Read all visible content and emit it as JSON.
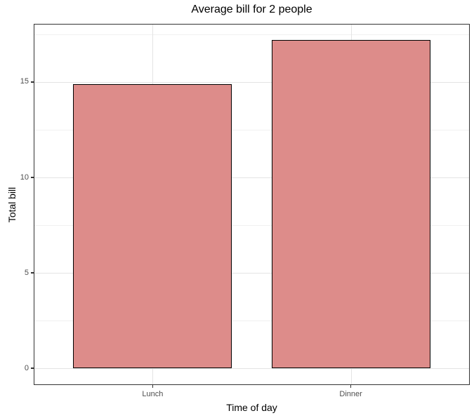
{
  "chart_data": {
    "type": "bar",
    "title": "Average bill for 2 people",
    "xlabel": "Time of day",
    "ylabel": "Total bill",
    "categories": [
      "Lunch",
      "Dinner"
    ],
    "values": [
      14.9,
      17.2
    ],
    "yticks": [
      0,
      5,
      10,
      15
    ],
    "yticks_minor": [
      2.5,
      7.5,
      12.5,
      17.5
    ],
    "ylim": [
      -0.88,
      18.05
    ],
    "xlim": [
      0.4,
      2.6
    ],
    "x_positions": [
      1,
      2
    ],
    "bar_width": 0.8,
    "grid": true,
    "legend_position": "none",
    "colors": {
      "bar_fill": "#DD8C8A",
      "bar_border": "#000000",
      "grid_major": "#E4E4E4",
      "grid_minor": "#F0F0F0",
      "panel_border": "#333333",
      "tick_label": "#4D4D4D",
      "text": "#000000",
      "background": "#FFFFFF"
    }
  }
}
